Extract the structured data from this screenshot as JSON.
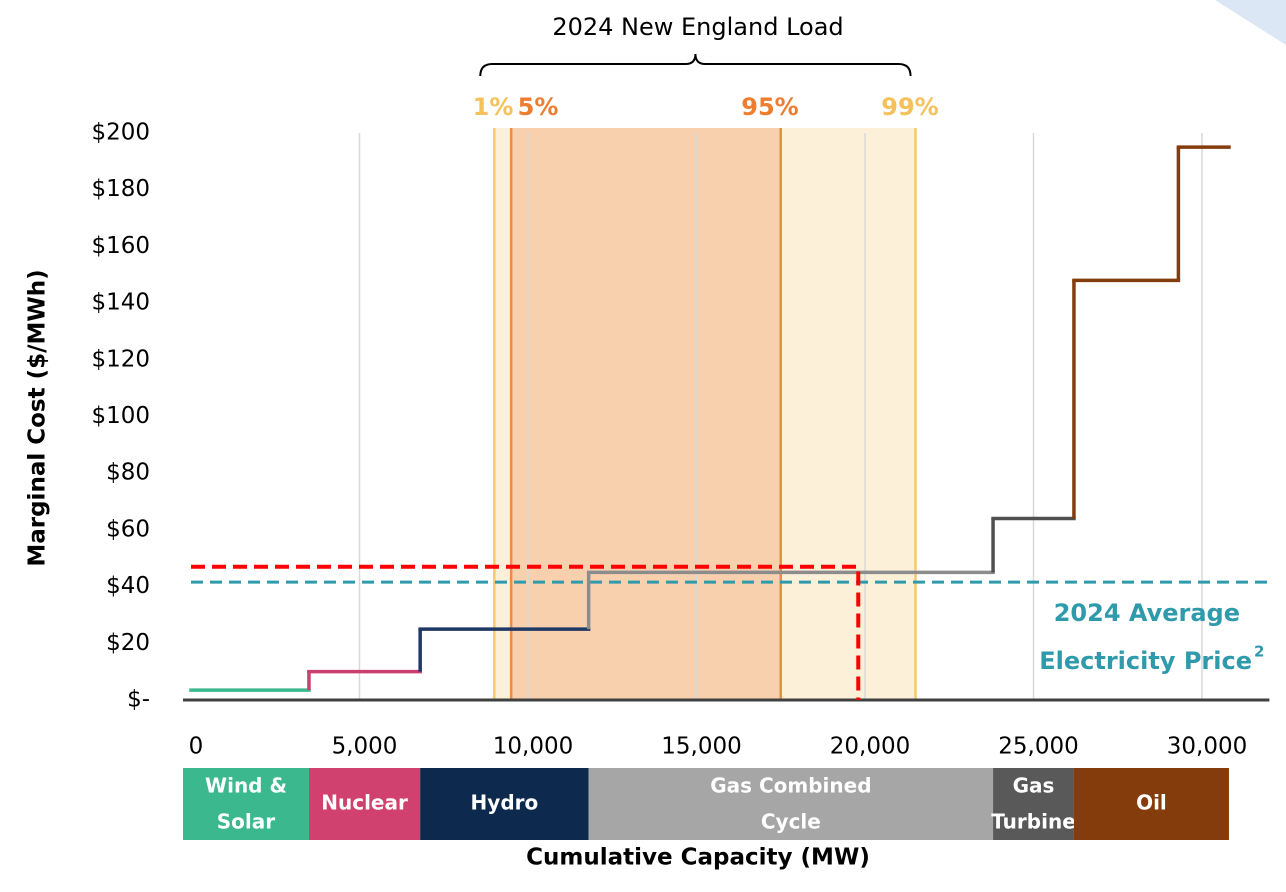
{
  "chart_data": {
    "type": "step",
    "title": "2024 New England Load",
    "x_label": "Cumulative Capacity (MW)",
    "y_label": "Marginal Cost ($/MWh)",
    "xlim": [
      0,
      32000
    ],
    "ylim": [
      0,
      200
    ],
    "xticks": [
      0,
      {
        "value": 5000,
        "label": "5,000"
      },
      {
        "value": 10000,
        "label": "10,000"
      },
      {
        "value": 15000,
        "label": "15,000"
      },
      {
        "value": 20000,
        "label": "20,000"
      },
      {
        "value": 25000,
        "label": "25,000"
      },
      {
        "value": 30000,
        "label": "30,000"
      }
    ],
    "yticks": [
      {
        "value": 0,
        "label": "$-"
      },
      {
        "value": 20,
        "label": "$20"
      },
      {
        "value": 40,
        "label": "$40"
      },
      {
        "value": 60,
        "label": "$60"
      },
      {
        "value": 80,
        "label": "$80"
      },
      {
        "value": 100,
        "label": "$100"
      },
      {
        "value": 120,
        "label": "$120"
      },
      {
        "value": 140,
        "label": "$140"
      },
      {
        "value": 160,
        "label": "$160"
      },
      {
        "value": 180,
        "label": "$180"
      },
      {
        "value": 200,
        "label": "$200"
      }
    ],
    "grid": "x",
    "resources": [
      {
        "name": [
          "Wind &",
          "Solar"
        ],
        "x_end": 3500,
        "cost": 3.5,
        "color": "#3cb88f",
        "line_color": "#3cb88f"
      },
      {
        "name": [
          "Nuclear"
        ],
        "x_end": 6800,
        "cost": 10,
        "color": "#d0416f",
        "line_color": "#c9406f"
      },
      {
        "name": [
          "Hydro"
        ],
        "x_end": 11800,
        "cost": 25,
        "color": "#0d2a4e",
        "line_color": "#1f3864"
      },
      {
        "name": [
          "Gas Combined",
          "Cycle"
        ],
        "x_end": 23800,
        "cost": 45,
        "color": "#a6a6a6",
        "line_color": "#8c8c8c"
      },
      {
        "name": [
          "Gas",
          "Turbine"
        ],
        "x_end": 26200,
        "cost": 64,
        "color": "#595959",
        "line_color": "#505050"
      },
      {
        "name": [
          "Oil"
        ],
        "x_end": 29300,
        "cost": 148,
        "color": "#843c0c",
        "line_color": "#843c0c"
      },
      {
        "name": [],
        "x_end": 30800,
        "cost": 195,
        "color": "#843c0c",
        "line_color": "#843c0c"
      }
    ],
    "load_percentiles": [
      {
        "label": "1%",
        "x": 9000,
        "color": "#f5c15c"
      },
      {
        "label": "5%",
        "x": 9500,
        "color": "#ed7d31"
      },
      {
        "label": "95%",
        "x": 17500,
        "color": "#ed7d31"
      },
      {
        "label": "99%",
        "x": 21500,
        "color": "#f5c15c"
      }
    ],
    "clearing": {
      "x": 19800,
      "y": 47,
      "color": "#ff0000"
    },
    "average_price": {
      "value": 41.6,
      "color": "#2e9aab",
      "label": [
        "2024 Average",
        "Electricity Price"
      ],
      "footnote": "2"
    }
  }
}
